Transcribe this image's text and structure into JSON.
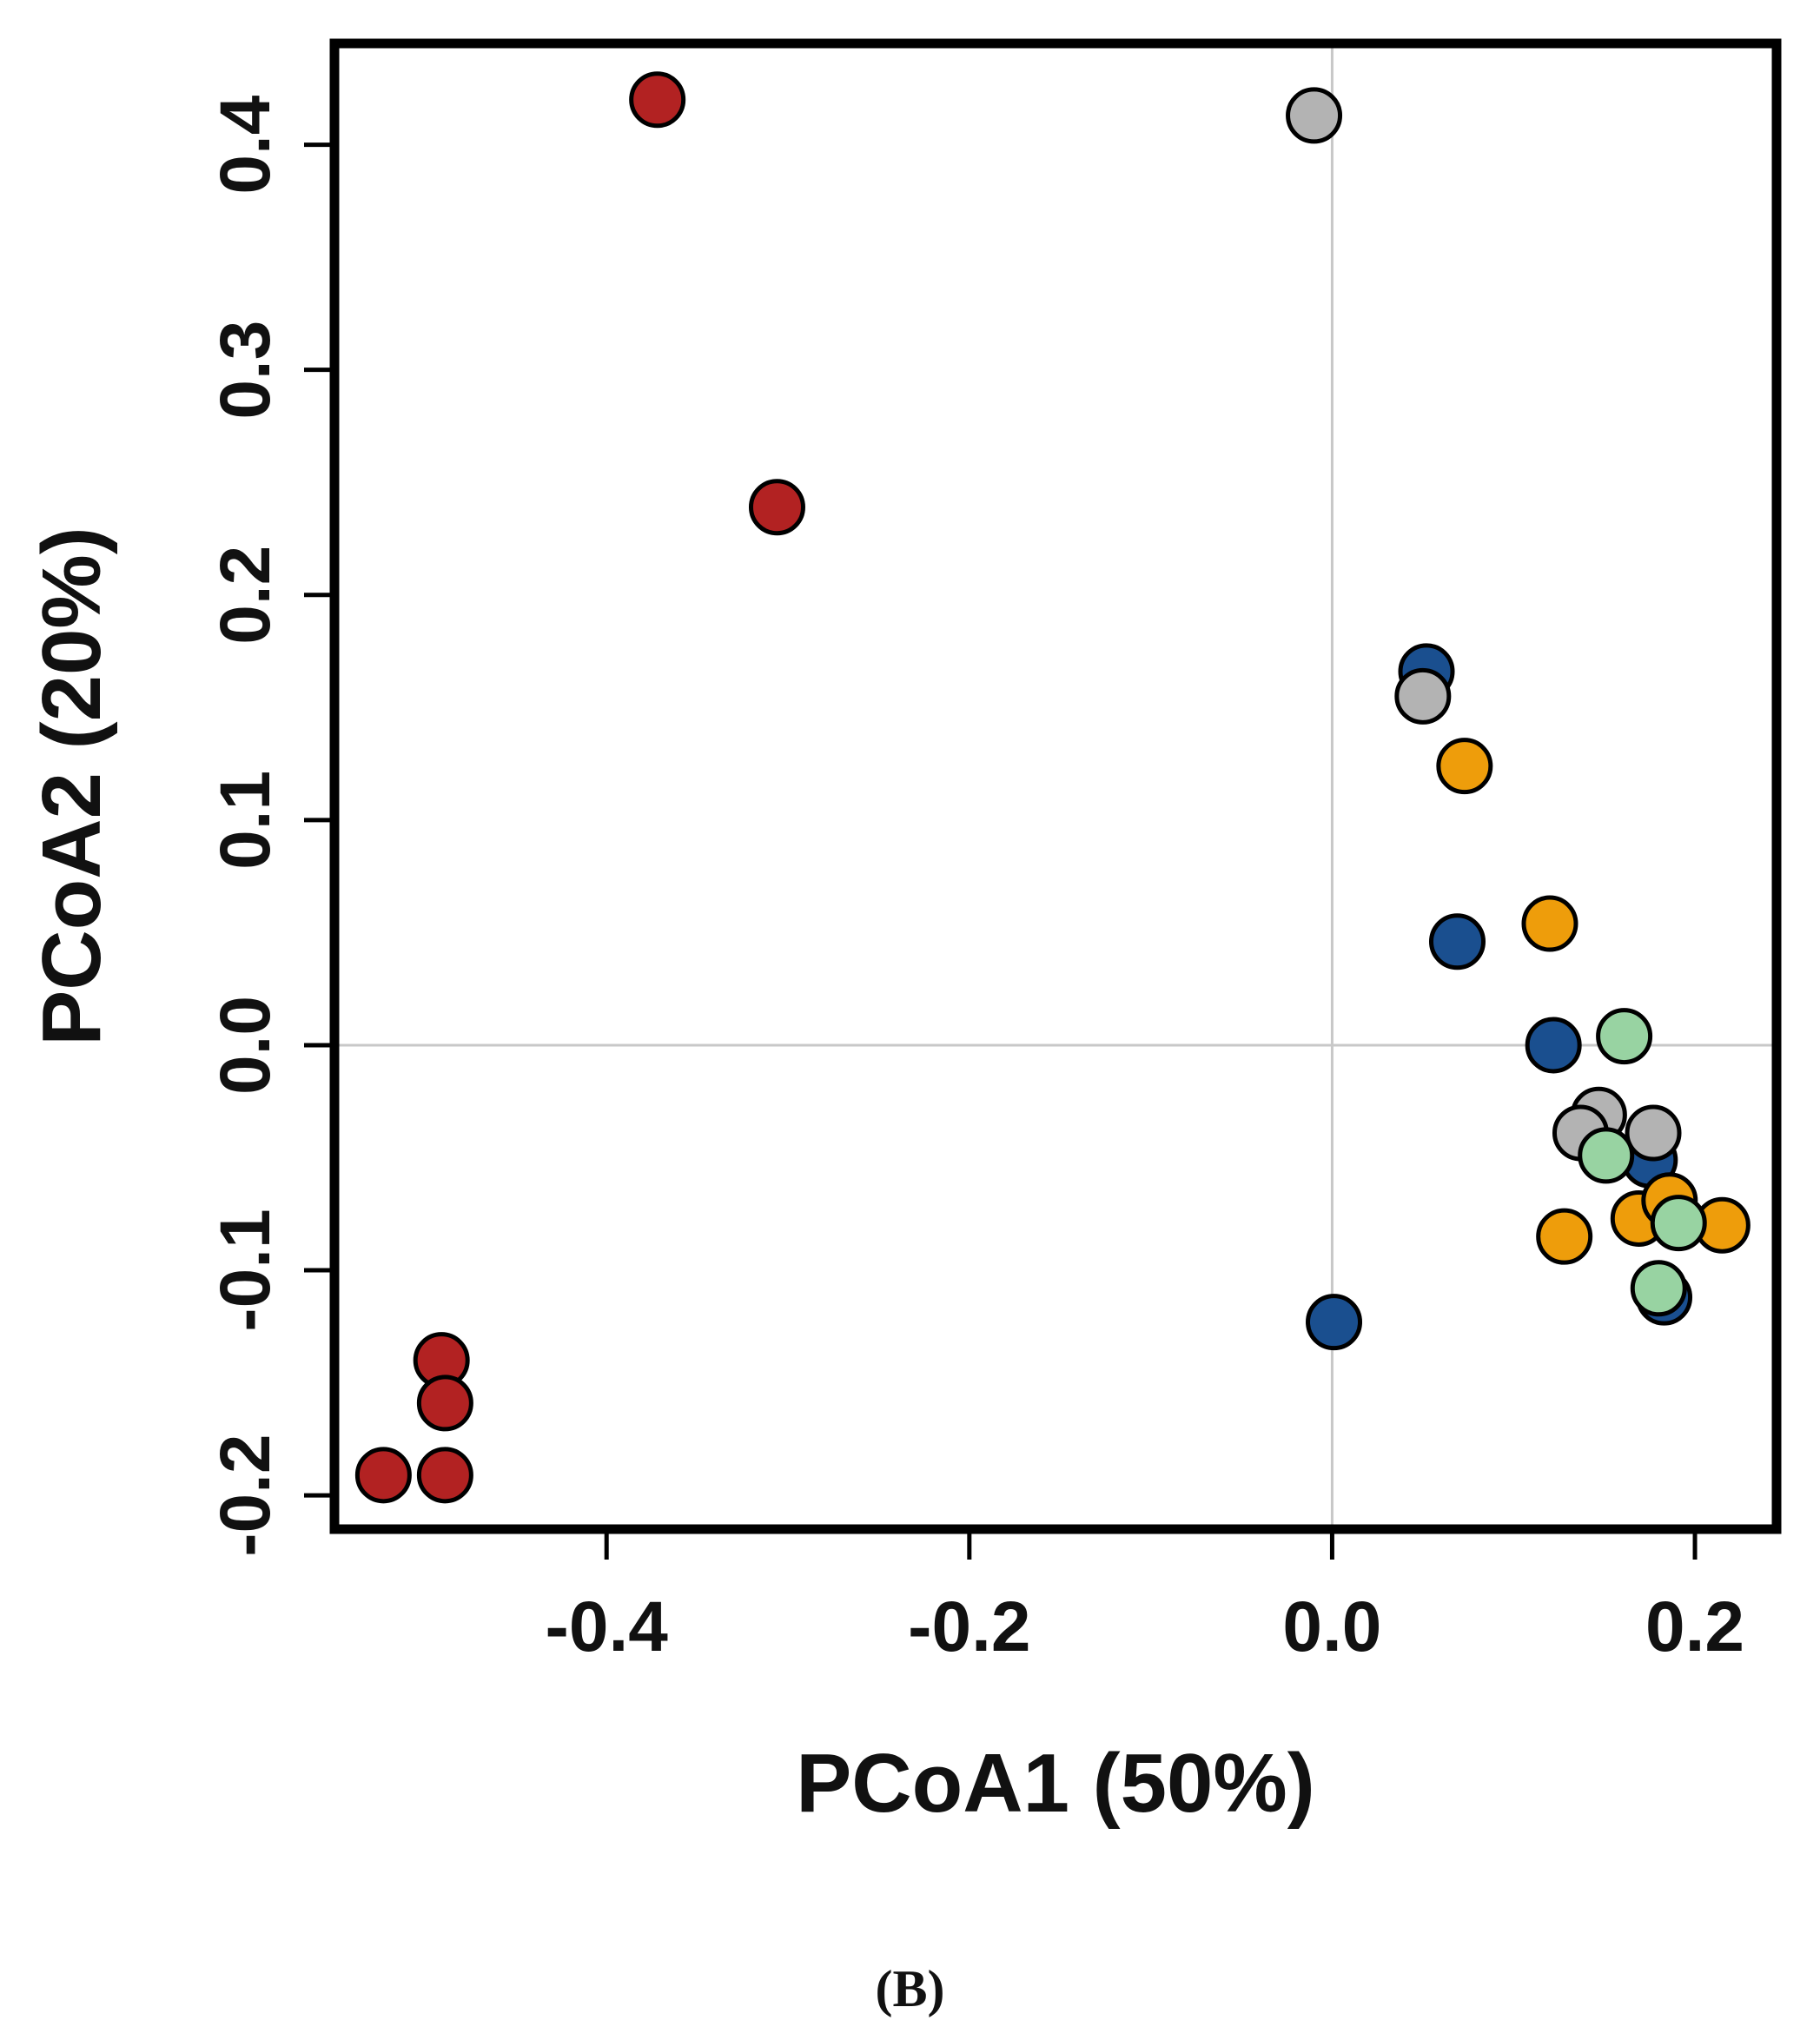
{
  "chart_data": {
    "type": "scatter",
    "title": "",
    "xlabel": "PCoA1 (50%)",
    "ylabel": "PCoA2 (20%)",
    "xlim": [
      -0.55,
      0.245
    ],
    "ylim": [
      -0.215,
      0.445
    ],
    "xticks": [
      -0.4,
      -0.2,
      0.0,
      0.2
    ],
    "xtick_labels": [
      "-0.4",
      "-0.2",
      "0.0",
      "0.2"
    ],
    "yticks": [
      -0.2,
      -0.1,
      0.0,
      0.1,
      0.2,
      0.3,
      0.4
    ],
    "ytick_labels": [
      "-0.2",
      "-0.1",
      "0.0",
      "0.1",
      "0.2",
      "0.3",
      "0.4"
    ],
    "reference_lines": {
      "x": 0.0,
      "y": 0.0
    },
    "grid": false,
    "legend": null,
    "series": [
      {
        "name": "red group",
        "color": "#B22222",
        "points": [
          {
            "x": -0.372,
            "y": 0.42
          },
          {
            "x": -0.306,
            "y": 0.239
          },
          {
            "x": -0.491,
            "y": -0.14
          },
          {
            "x": -0.489,
            "y": -0.159
          },
          {
            "x": -0.489,
            "y": -0.191
          },
          {
            "x": -0.523,
            "y": -0.191
          }
        ]
      },
      {
        "name": "blue group",
        "color": "#1A4F8F",
        "points": [
          {
            "x": 0.052,
            "y": 0.166
          },
          {
            "x": 0.069,
            "y": 0.046
          },
          {
            "x": 0.122,
            "y": 0.0
          },
          {
            "x": 0.001,
            "y": -0.123
          },
          {
            "x": 0.175,
            "y": -0.051
          },
          {
            "x": 0.183,
            "y": -0.112
          }
        ]
      },
      {
        "name": "gray group",
        "color": "#B3B3B3",
        "points": [
          {
            "x": -0.01,
            "y": 0.413
          },
          {
            "x": 0.05,
            "y": 0.155
          },
          {
            "x": 0.147,
            "y": -0.031
          },
          {
            "x": 0.137,
            "y": -0.039
          },
          {
            "x": 0.177,
            "y": -0.039
          }
        ]
      },
      {
        "name": "orange group",
        "color": "#EE9D0B",
        "points": [
          {
            "x": 0.073,
            "y": 0.124
          },
          {
            "x": 0.12,
            "y": 0.054
          },
          {
            "x": 0.128,
            "y": -0.085
          },
          {
            "x": 0.169,
            "y": -0.077
          },
          {
            "x": 0.186,
            "y": -0.069
          },
          {
            "x": 0.215,
            "y": -0.08
          }
        ]
      },
      {
        "name": "green group",
        "color": "#98D3A2",
        "points": [
          {
            "x": 0.161,
            "y": 0.004
          },
          {
            "x": 0.151,
            "y": -0.049
          },
          {
            "x": 0.191,
            "y": -0.079
          },
          {
            "x": 0.18,
            "y": -0.108
          }
        ]
      }
    ]
  },
  "panel_label": "(B)"
}
